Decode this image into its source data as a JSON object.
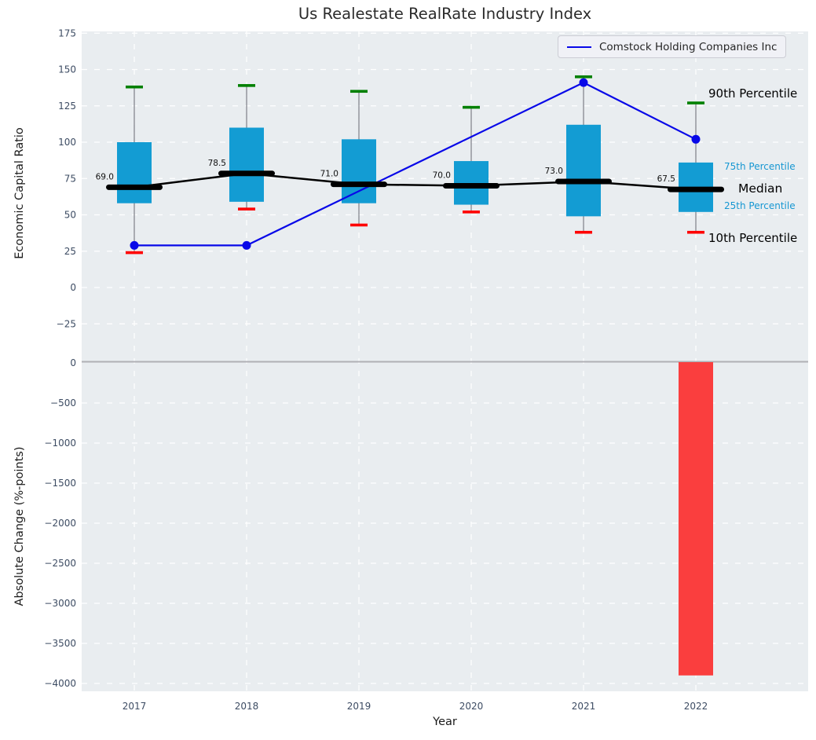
{
  "title": "Us Realestate RealRate Industry Index",
  "xlabel": "Year",
  "legend": {
    "label": "Comstock Holding Companies Inc"
  },
  "annotations": {
    "p90": "90th Percentile",
    "p75": "75th Percentile",
    "median": "Median",
    "p25": "25th Percentile",
    "p10": "10th Percentile"
  },
  "colors": {
    "plot_bg": "#e9edf0",
    "grid": "#ffffff",
    "box": "#139cd3",
    "cap_high": "#008000",
    "cap_low": "#fe0000",
    "median": "#000000",
    "company_line": "#0808e8",
    "bar_negative": "#fa3e3e",
    "whisker": "#85878f",
    "tick_text": "#3d4c63",
    "zero_line": "#b0b0b5",
    "percentile_text": "#1697d2"
  },
  "chart_data": [
    {
      "type": "box-percentile",
      "ylabel": "Economic Capital Ratio",
      "categories": [
        "2017",
        "2018",
        "2019",
        "2020",
        "2021",
        "2022"
      ],
      "yticks": [
        175,
        150,
        125,
        100,
        75,
        50,
        25,
        0,
        -25
      ],
      "ylim": [
        -48,
        178
      ],
      "grid": true,
      "legend_position": "upper right",
      "series": [
        {
          "name": "90th Percentile",
          "values": [
            138,
            139,
            135,
            124,
            145,
            127
          ]
        },
        {
          "name": "75th Percentile",
          "values": [
            100,
            110,
            102,
            87,
            112,
            86
          ]
        },
        {
          "name": "Median",
          "values": [
            69.0,
            78.5,
            71.0,
            70.0,
            73.0,
            67.5
          ]
        },
        {
          "name": "25th Percentile",
          "values": [
            58,
            59,
            58,
            57,
            49,
            52
          ]
        },
        {
          "name": "10th Percentile",
          "values": [
            24,
            54,
            43,
            52,
            38,
            38
          ]
        }
      ],
      "median_labels": [
        "69.0",
        "78.5",
        "71.0",
        "70.0",
        "73.0",
        "67.5"
      ],
      "company_line": {
        "name": "Comstock Holding Companies Inc",
        "points": [
          {
            "x": "2017",
            "y": 29
          },
          {
            "x": "2018",
            "y": 29
          },
          {
            "x": "2021",
            "y": 141
          },
          {
            "x": "2022",
            "y": 102
          }
        ]
      }
    },
    {
      "type": "bar",
      "ylabel": "Absolute Change (%-points)",
      "categories": [
        "2017",
        "2018",
        "2019",
        "2020",
        "2021",
        "2022"
      ],
      "values": [
        null,
        null,
        null,
        null,
        null,
        -3900
      ],
      "yticks": [
        0,
        -500,
        -1000,
        -1500,
        -2000,
        -2500,
        -3000,
        -3500,
        -4000
      ],
      "ylim": [
        50,
        -4100
      ],
      "grid": true
    }
  ]
}
